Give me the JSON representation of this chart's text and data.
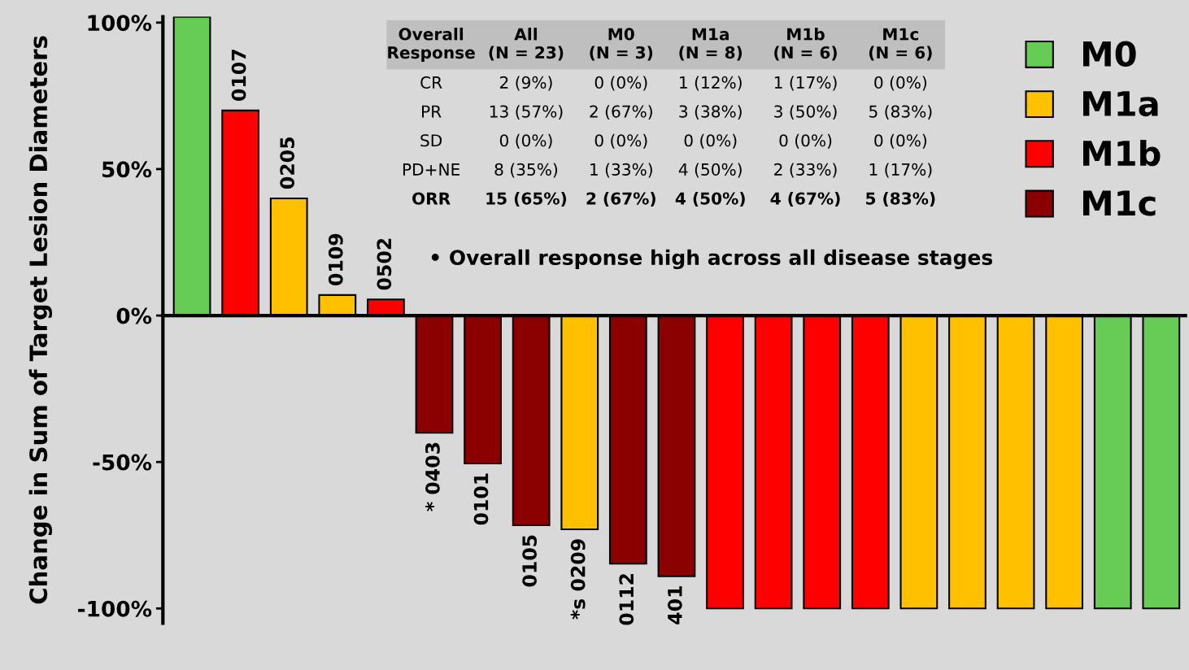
{
  "chart_data": [
    {
      "type": "bar",
      "ylabel": "Change in Sum of Target Lesion Diameters",
      "categories": [
        null,
        "0107",
        "0205",
        "0109",
        "0502",
        "* 0403",
        "0101",
        "0105",
        "*s 0209",
        "0112",
        "401",
        null,
        null,
        null,
        null,
        null,
        null,
        null,
        null,
        null,
        null
      ],
      "series": [
        {
          "name": "M0",
          "color": "#66cc55",
          "values": [
            102,
            null,
            null,
            null,
            null,
            null,
            null,
            null,
            null,
            null,
            null,
            null,
            null,
            null,
            null,
            null,
            null,
            null,
            null,
            -100,
            -100
          ]
        },
        {
          "name": "M1a",
          "color": "#ffc000",
          "values": [
            null,
            null,
            40,
            7,
            null,
            null,
            null,
            null,
            -73,
            null,
            null,
            null,
            null,
            null,
            null,
            -100,
            -100,
            -100,
            -100,
            null,
            null
          ]
        },
        {
          "name": "M1b",
          "color": "#ff0000",
          "values": [
            null,
            70,
            null,
            null,
            5.5,
            null,
            null,
            null,
            null,
            null,
            null,
            -100,
            -100,
            -100,
            -100,
            null,
            null,
            null,
            null,
            null,
            null
          ]
        },
        {
          "name": "M1c",
          "color": "#8b0000",
          "values": [
            null,
            null,
            null,
            null,
            null,
            -40,
            -50.5,
            -71.6,
            null,
            -84.7,
            -89,
            null,
            null,
            null,
            null,
            null,
            null,
            null,
            null,
            null,
            null
          ]
        }
      ],
      "ylim": [
        -105,
        102
      ],
      "yticks": [
        {
          "value": -100,
          "label": "-100%"
        },
        {
          "value": -50,
          "label": "-50%"
        },
        {
          "value": 0,
          "label": "0%"
        },
        {
          "value": 50,
          "label": "50%"
        },
        {
          "value": 100,
          "label": "100%"
        }
      ],
      "legend": "top right",
      "grid": false,
      "annotations": [
        "• Overall response high across all disease stages"
      ]
    },
    {
      "type": "other",
      "annotations": [
        "Overall\nResponse",
        "All\n(N = 23)",
        "M0\n(N = 3)",
        "M1a\n(N = 8)",
        "M1b\n(N = 6)",
        "M1c\n(N = 6)",
        "CR",
        "2 (9%)",
        "0 (0%)",
        "1 (12%)",
        "1 (17%)",
        "0 (0%)",
        "PR",
        "13 (57%)",
        "2 (67%)",
        "3 (38%)",
        "3 (50%)",
        "5 (83%)",
        "SD",
        "0 (0%)",
        "0 (0%)",
        "0 (0%)",
        "0 (0%)",
        "0 (0%)",
        "PD+NE",
        "8 (35%)",
        "1 (33%)",
        "4 (50%)",
        "2 (33%)",
        "1 (17%)",
        "ORR",
        "15 (65%)",
        "2 (67%)",
        "4 (50%)",
        "4 (67%)",
        "5 (83%)"
      ]
    }
  ]
}
